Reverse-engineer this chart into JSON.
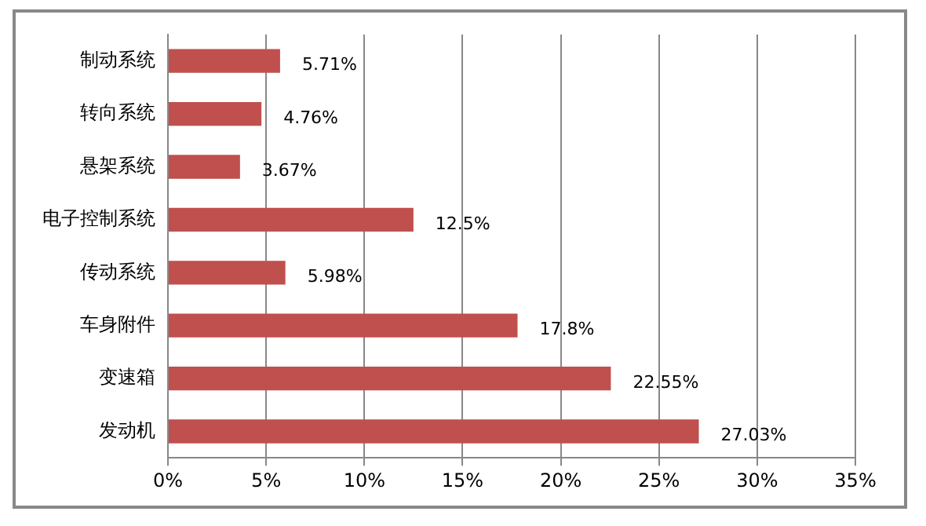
{
  "chart_data": {
    "type": "bar",
    "orientation": "horizontal",
    "categories": [
      "制动系统",
      "转向系统",
      "悬架系统",
      "电子控制系统",
      "传动系统",
      "车身附件",
      "变速箱",
      "发动机"
    ],
    "values": [
      5.71,
      4.76,
      3.67,
      12.5,
      5.98,
      17.8,
      22.55,
      27.03
    ],
    "color": "#c0504d",
    "xlim": [
      0,
      35
    ],
    "xticks": [
      {
        "value": 0,
        "label": "0%"
      },
      {
        "value": 5,
        "label": "5%"
      },
      {
        "value": 10,
        "label": "10%"
      },
      {
        "value": 15,
        "label": "15%"
      },
      {
        "value": 20,
        "label": "20%"
      },
      {
        "value": 25,
        "label": "25%"
      },
      {
        "value": 30,
        "label": "30%"
      },
      {
        "value": 35,
        "label": "35%"
      }
    ],
    "value_labels": [
      "5.71%",
      "4.76%",
      "3.67%",
      "12.5%",
      "5.98%",
      "17.8%",
      "22.55%",
      "27.03%"
    ],
    "grid": "x",
    "legend": false
  }
}
